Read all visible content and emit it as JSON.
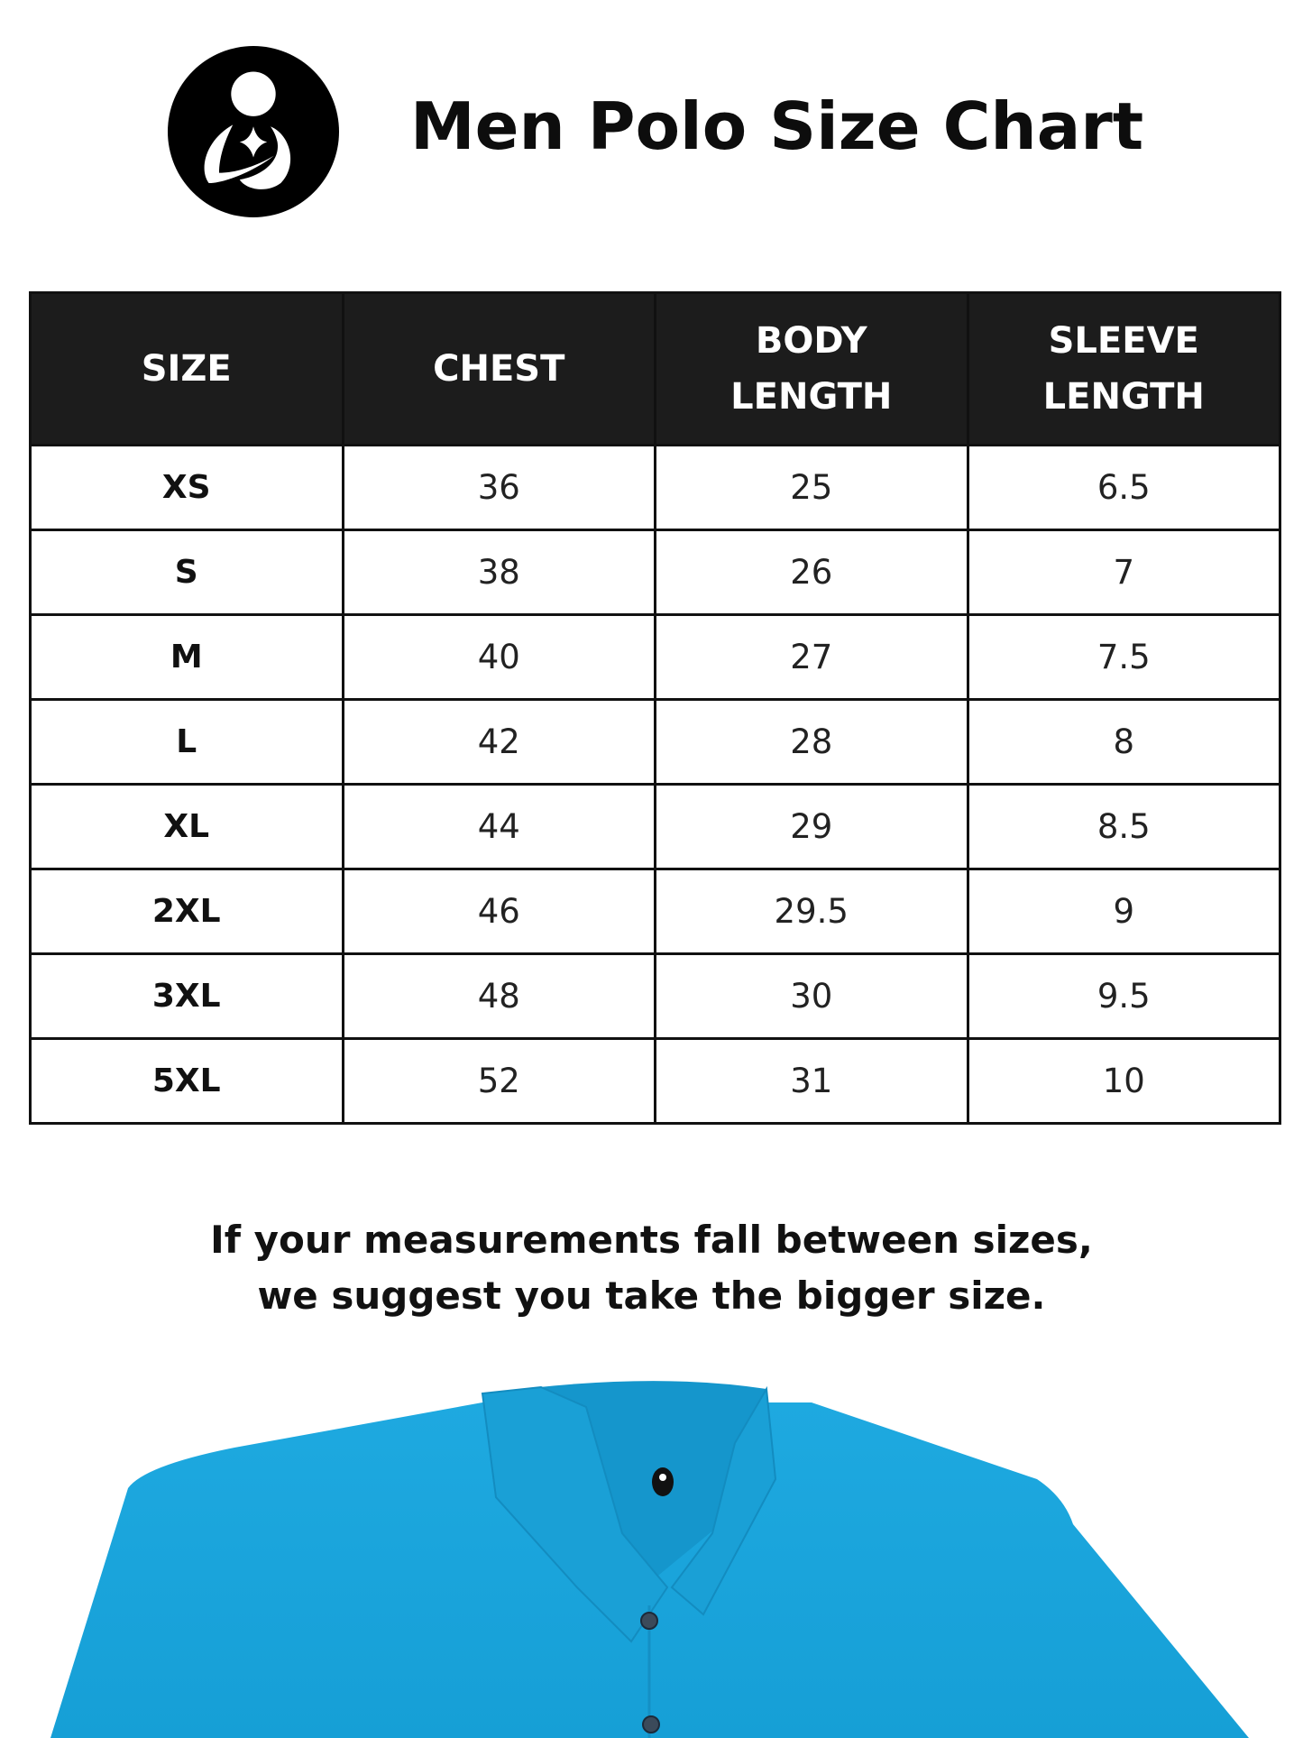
{
  "header": {
    "title": "Men Polo Size Chart",
    "logo": "mother-and-child-circle-logo"
  },
  "table": {
    "columns": [
      {
        "line1": "SIZE",
        "line2": ""
      },
      {
        "line1": "CHEST",
        "line2": ""
      },
      {
        "line1": "BODY",
        "line2": "LENGTH"
      },
      {
        "line1": "SLEEVE",
        "line2": "LENGTH"
      }
    ],
    "rows": [
      [
        "XS",
        "36",
        "25",
        "6.5"
      ],
      [
        "S",
        "38",
        "26",
        "7"
      ],
      [
        "M",
        "40",
        "27",
        "7.5"
      ],
      [
        "L",
        "42",
        "28",
        "8"
      ],
      [
        "XL",
        "44",
        "29",
        "8.5"
      ],
      [
        "2XL",
        "46",
        "29.5",
        "9"
      ],
      [
        "3XL",
        "48",
        "30",
        "9.5"
      ],
      [
        "5XL",
        "52",
        "31",
        "10"
      ]
    ]
  },
  "note": {
    "line1": "If your measurements fall between sizes,",
    "line2": "we suggest you take the bigger size."
  },
  "colors": {
    "header_bg": "#1c1c1c",
    "shirt": "#1aa5dc"
  }
}
